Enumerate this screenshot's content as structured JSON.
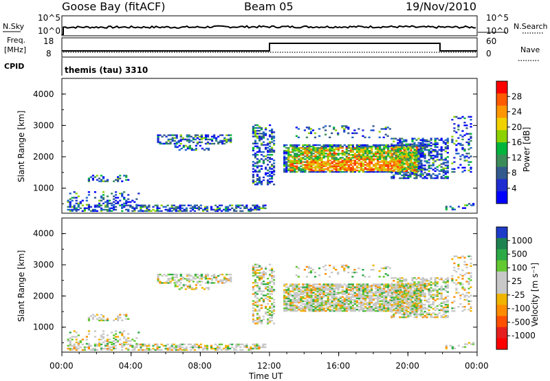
{
  "header": {
    "station": "Goose Bay (fitACF)",
    "beam": "Beam 05",
    "date": "19/Nov/2010"
  },
  "param_panels": {
    "nsky_label": "N.Sky",
    "nsearch_label": "N.Search",
    "noise_ticks_left": [
      "10^5",
      "10^0"
    ],
    "noise_ticks_right": [
      "10^5",
      "10^0"
    ],
    "freq_label_line1": "Freq.",
    "freq_label_line2": "[MHz]",
    "freq_ticks": [
      "18",
      "8"
    ],
    "nave_label": "Nave",
    "nave_ticks": [
      "60",
      "0"
    ],
    "cpid_label": "CPID",
    "cpid_value": "themis (tau) 3310"
  },
  "chart_data": [
    {
      "type": "heatmap",
      "name": "power",
      "ylabel": "Slant Range [km]",
      "yticks": [
        "4000",
        "3000",
        "2000",
        "1000"
      ],
      "ylim": [
        200,
        4500
      ],
      "colorbar_label": "Power [dB]",
      "colorbar_ticks": [
        "28",
        "24",
        "20",
        "16",
        "12",
        "8",
        "4"
      ],
      "colorbar_colors": [
        "#ff0000",
        "#ff5a00",
        "#ff9600",
        "#f0d200",
        "#8cd200",
        "#00b43c",
        "#3c8c5a",
        "#325a8c",
        "#1e2dd2",
        "#0000ff"
      ],
      "xlim_hours": [
        0,
        24
      ]
    },
    {
      "type": "heatmap",
      "name": "velocity",
      "ylabel": "Slant Range [km]",
      "yticks": [
        "4000",
        "3000",
        "2000",
        "1000"
      ],
      "ylim": [
        200,
        4500
      ],
      "colorbar_label": "Velocity [m s⁻¹]",
      "colorbar_ticks": [
        "1000",
        "500",
        "100",
        "25",
        "-25",
        "-100",
        "-500",
        "-1000"
      ],
      "colorbar_colors": [
        "#1e3cc8",
        "#1e8250",
        "#2daa46",
        "#64c832",
        "#c8c8c8",
        "#c8c8c8",
        "#f0b400",
        "#ff8c00",
        "#ff5000",
        "#e61e1e",
        "#ff0000"
      ],
      "xlim_hours": [
        0,
        24
      ]
    }
  ],
  "time_axis": {
    "ticks": [
      "00:00",
      "04:00",
      "08:00",
      "12:00",
      "16:00",
      "20:00",
      "00:00"
    ],
    "label": "Time UT"
  }
}
